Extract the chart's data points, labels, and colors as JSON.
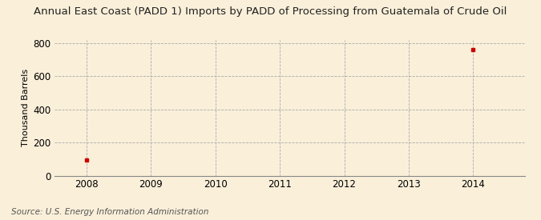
{
  "title": "Annual East Coast (PADD 1) Imports by PADD of Processing from Guatemala of Crude Oil",
  "ylabel": "Thousand Barrels",
  "source": "Source: U.S. Energy Information Administration",
  "x_data": [
    2008,
    2014
  ],
  "y_data": [
    96,
    762
  ],
  "xlim": [
    2007.5,
    2014.8
  ],
  "ylim": [
    0,
    820
  ],
  "yticks": [
    0,
    200,
    400,
    600,
    800
  ],
  "xticks": [
    2008,
    2009,
    2010,
    2011,
    2012,
    2013,
    2014
  ],
  "point_color": "#cc0000",
  "background_color": "#faefd9",
  "grid_color": "#aaaaaa",
  "title_fontsize": 9.5,
  "label_fontsize": 8,
  "tick_fontsize": 8.5,
  "source_fontsize": 7.5
}
